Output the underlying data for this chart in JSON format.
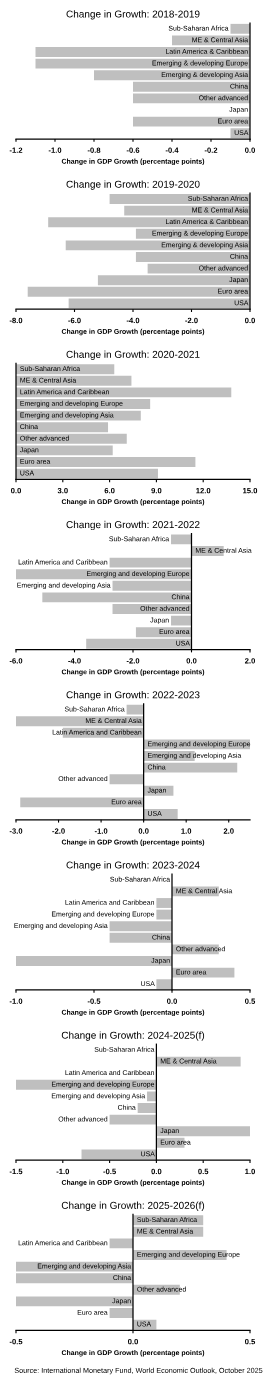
{
  "chart_data": [
    {
      "type": "bar",
      "orientation": "horizontal",
      "title": "Change in Growth: 2018-2019",
      "xlabel": "Change in GDP Growth (percentage points)",
      "color": "#bfbfbf",
      "categories": [
        "Sub-Saharan Africa",
        "ME & Central Asia",
        "Latin America & Caribbean",
        "Emerging & developing Europe",
        "Emerging & developing Asia",
        "China",
        "Other advanced",
        "Japan",
        "Euro area",
        "USA"
      ],
      "values": [
        -0.1,
        -0.4,
        -1.1,
        -1.1,
        -0.8,
        -0.6,
        -0.6,
        0,
        -0.6,
        -0.1
      ],
      "xlim": [
        -1.2,
        0
      ],
      "xticks": [
        {
          "value": -1.2,
          "label": "-1.2"
        },
        {
          "value": -1.0,
          "label": "-1.0"
        },
        {
          "value": -0.8,
          "label": "-0.8"
        },
        {
          "value": -0.6,
          "label": "-0.6"
        },
        {
          "value": -0.4,
          "label": "-0.4"
        },
        {
          "value": -0.2,
          "label": "-0.2"
        },
        {
          "value": 0,
          "label": "0.0"
        }
      ]
    },
    {
      "type": "bar",
      "orientation": "horizontal",
      "title": "Change in Growth: 2019-2020",
      "xlabel": "Change in GDP Growth (percentage points)",
      "color": "#bfbfbf",
      "categories": [
        "Sub-Saharan Africa",
        "ME & Central Asia",
        "Latin America & Caribbean",
        "Emerging & developing Europe",
        "Emerging & developing Asia",
        "China",
        "Other advanced",
        "Japan",
        "Euro area",
        "USA"
      ],
      "values": [
        -4.8,
        -4.3,
        -6.9,
        -3.9,
        -6.3,
        -3.9,
        -3.5,
        -5.2,
        -7.6,
        -6.2
      ],
      "xlim": [
        -8,
        0
      ],
      "xticks": [
        {
          "value": -8,
          "label": "-8.0"
        },
        {
          "value": -6,
          "label": "-6.0"
        },
        {
          "value": -4,
          "label": "-4.0"
        },
        {
          "value": -2,
          "label": "-2.0"
        },
        {
          "value": 0,
          "label": "0.0"
        }
      ]
    },
    {
      "type": "bar",
      "orientation": "horizontal",
      "title": "Change in Growth: 2020-2021",
      "xlabel": "Change in GDP Growth (percentage points)",
      "color": "#bfbfbf",
      "categories": [
        "Sub-Saharan Africa",
        "ME & Central Asia",
        "Latin America and Caribbean",
        "Emerging and developing Europe",
        "Emerging and developing Asia",
        "China",
        "Other advanced",
        "Japan",
        "Euro area",
        "USA"
      ],
      "values": [
        6.3,
        7.4,
        13.8,
        8.6,
        8.0,
        5.9,
        7.1,
        6.2,
        11.5,
        9.1
      ],
      "xlim": [
        0,
        15
      ],
      "xticks": [
        {
          "value": 0,
          "label": "0.0"
        },
        {
          "value": 3,
          "label": "3.0"
        },
        {
          "value": 6,
          "label": "6.0"
        },
        {
          "value": 9,
          "label": "9.0"
        },
        {
          "value": 12,
          "label": "12.0"
        },
        {
          "value": 15,
          "label": "15.0"
        }
      ]
    },
    {
      "type": "bar",
      "orientation": "horizontal",
      "title": "Change in Growth: 2021-2022",
      "xlabel": "Change in GDP Growth (percentage points)",
      "color": "#bfbfbf",
      "categories": [
        "Sub-Saharan Africa",
        "ME & Central Asia",
        "Latin America and Caribbean",
        "Emerging and developing Europe",
        "Emerging and developing Asia",
        "China",
        "Other advanced",
        "Japan",
        "Euro area",
        "USA"
      ],
      "values": [
        -0.7,
        1.1,
        -2.8,
        -6.0,
        -2.7,
        -5.1,
        -2.7,
        -0.7,
        -1.9,
        -3.6
      ],
      "xlim": [
        -6,
        2
      ],
      "xticks": [
        {
          "value": -6,
          "label": "-6.0"
        },
        {
          "value": -4,
          "label": "-4.0"
        },
        {
          "value": -2,
          "label": "-2.0"
        },
        {
          "value": 0,
          "label": "0.0"
        },
        {
          "value": 2,
          "label": "2.0"
        }
      ]
    },
    {
      "type": "bar",
      "orientation": "horizontal",
      "title": "Change in Growth: 2022-2023",
      "xlabel": "Change in GDP Growth (percentage points)",
      "color": "#bfbfbf",
      "categories": [
        "Sub-Saharan Africa",
        "ME & Central Asia",
        "Latin America and Caribbean",
        "Emerging and developing Europe",
        "Emerging and developing Asia",
        "China",
        "Other advanced",
        "Japan",
        "Euro area",
        "USA"
      ],
      "values": [
        -0.4,
        -3.0,
        -1.9,
        2.5,
        1.2,
        2.2,
        -0.8,
        0.7,
        -2.9,
        0.8
      ],
      "xlim": [
        -3,
        2.5
      ],
      "xticks": [
        {
          "value": -3,
          "label": "-3.0"
        },
        {
          "value": -2,
          "label": "-2.0"
        },
        {
          "value": -1,
          "label": "-1.0"
        },
        {
          "value": 0,
          "label": "0.0"
        },
        {
          "value": 1,
          "label": "1.0"
        },
        {
          "value": 2,
          "label": "2.0"
        }
      ]
    },
    {
      "type": "bar",
      "orientation": "horizontal",
      "title": "Change in Growth: 2023-2024",
      "xlabel": "Change in GDP Growth (percentage points)",
      "color": "#bfbfbf",
      "categories": [
        "Sub-Saharan Africa",
        "ME & Central Asia",
        "Latin America and Caribbean",
        "Emerging and developing Europe",
        "Emerging and developing Asia",
        "China",
        "Other advanced",
        "Japan",
        "Euro area",
        "USA"
      ],
      "values": [
        0,
        0.3,
        -0.1,
        -0.1,
        -0.4,
        -0.4,
        0.3,
        -1.0,
        0.4,
        -0.1
      ],
      "xlim": [
        -1,
        0.5
      ],
      "xticks": [
        {
          "value": -1,
          "label": "-1.0"
        },
        {
          "value": -0.5,
          "label": "-0.5"
        },
        {
          "value": 0,
          "label": "0.0"
        },
        {
          "value": 0.5,
          "label": "0.5"
        }
      ]
    },
    {
      "type": "bar",
      "orientation": "horizontal",
      "title": "Change in Growth: 2024-2025(f)",
      "xlabel": "Change in GDP Growth (percentage points)",
      "color": "#bfbfbf",
      "categories": [
        "Sub-Saharan Africa",
        "ME & Central Asia",
        "Latin America and Caribbean",
        "Emerging and developing Europe",
        "Emerging and developing Asia",
        "China",
        "Other advanced",
        "Japan",
        "Euro area",
        "USA"
      ],
      "values": [
        0,
        0.9,
        0,
        -1.5,
        -0.1,
        -0.2,
        -0.5,
        1.0,
        0.3,
        -0.8
      ],
      "xlim": [
        -1.5,
        1
      ],
      "xticks": [
        {
          "value": -1.5,
          "label": "-1.5"
        },
        {
          "value": -1,
          "label": "-1.0"
        },
        {
          "value": -0.5,
          "label": "-0.5"
        },
        {
          "value": 0,
          "label": "0.0"
        },
        {
          "value": 0.5,
          "label": "0.5"
        },
        {
          "value": 1,
          "label": "1.0"
        }
      ]
    },
    {
      "type": "bar",
      "orientation": "horizontal",
      "title": "Change in Growth: 2025-2026(f)",
      "xlabel": "Change in GDP Growth (percentage points)",
      "color": "#bfbfbf",
      "categories": [
        "Sub-Saharan Africa",
        "ME & Central Asia",
        "Latin America and Caribbean",
        "Emerging and developing Europe",
        "Emerging and developing Asia",
        "China",
        "Other advanced",
        "Japan",
        "Euro area",
        "USA"
      ],
      "values": [
        0.3,
        0.3,
        -0.1,
        0.4,
        -0.5,
        -0.5,
        0.2,
        -0.5,
        -0.1,
        0.1
      ],
      "xlim": [
        -0.5,
        0.5
      ],
      "xticks": [
        {
          "value": -0.5,
          "label": "-0.5"
        },
        {
          "value": 0,
          "label": "0.0"
        },
        {
          "value": 0.5,
          "label": "0.5"
        }
      ],
      "annotations": [
        "Source: International Monetary Fund, World Economic Outlook, October 2025"
      ]
    }
  ]
}
